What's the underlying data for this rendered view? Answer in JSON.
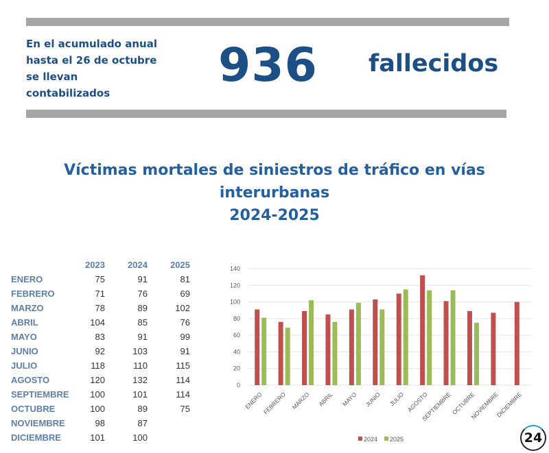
{
  "header": {
    "intro": "En el acumulado anual hasta el 26 de octubre se llevan contabilizados",
    "count": "936",
    "unit": "fallecidos"
  },
  "title": {
    "line1": "Víctimas mortales de siniestros de tráfico en vías",
    "line2": "interurbanas",
    "line3": "2024-2025"
  },
  "table": {
    "headers": [
      "2023",
      "2024",
      "2025"
    ],
    "rows": [
      {
        "month": "ENERO",
        "v": [
          "75",
          "91",
          "81"
        ]
      },
      {
        "month": "FEBRERO",
        "v": [
          "71",
          "76",
          "69"
        ]
      },
      {
        "month": "MARZO",
        "v": [
          "78",
          "89",
          "102"
        ]
      },
      {
        "month": "ABRIL",
        "v": [
          "104",
          "85",
          "76"
        ]
      },
      {
        "month": "MAYO",
        "v": [
          "83",
          "91",
          "99"
        ]
      },
      {
        "month": "JUNIO",
        "v": [
          "92",
          "103",
          "91"
        ]
      },
      {
        "month": "JULIO",
        "v": [
          "118",
          "110",
          "115"
        ]
      },
      {
        "month": "AGOSTO",
        "v": [
          "120",
          "132",
          "114"
        ]
      },
      {
        "month": "SEPTIEMBRE",
        "v": [
          "100",
          "101",
          "114"
        ]
      },
      {
        "month": "OCTUBRE",
        "v": [
          "100",
          "89",
          "75"
        ]
      },
      {
        "month": "NOVIEMBRE",
        "v": [
          "98",
          "87",
          ""
        ]
      },
      {
        "month": "DICIEMBRE",
        "v": [
          "101",
          "100",
          ""
        ]
      }
    ]
  },
  "logo": "24",
  "chart_data": {
    "type": "bar",
    "categories": [
      "ENERO",
      "FEBRERO",
      "MARZO",
      "ABRIL",
      "MAYO",
      "JUNIO",
      "JULIO",
      "AGOSTO",
      "SEPTIEMBRE",
      "OCTUBRE",
      "NOVIEMBRE",
      "DICIEMBRE"
    ],
    "series": [
      {
        "name": "2024",
        "color": "#c0504d",
        "values": [
          91,
          76,
          89,
          85,
          91,
          103,
          110,
          132,
          101,
          89,
          87,
          100
        ]
      },
      {
        "name": "2025",
        "color": "#9bbb59",
        "values": [
          81,
          69,
          102,
          76,
          99,
          91,
          115,
          114,
          114,
          75,
          null,
          null
        ]
      }
    ],
    "ylim": [
      0,
      140
    ],
    "yticks": [
      "0",
      "20",
      "40",
      "60",
      "80",
      "100",
      "120",
      "140"
    ],
    "grid": true,
    "legend": "bottom"
  }
}
